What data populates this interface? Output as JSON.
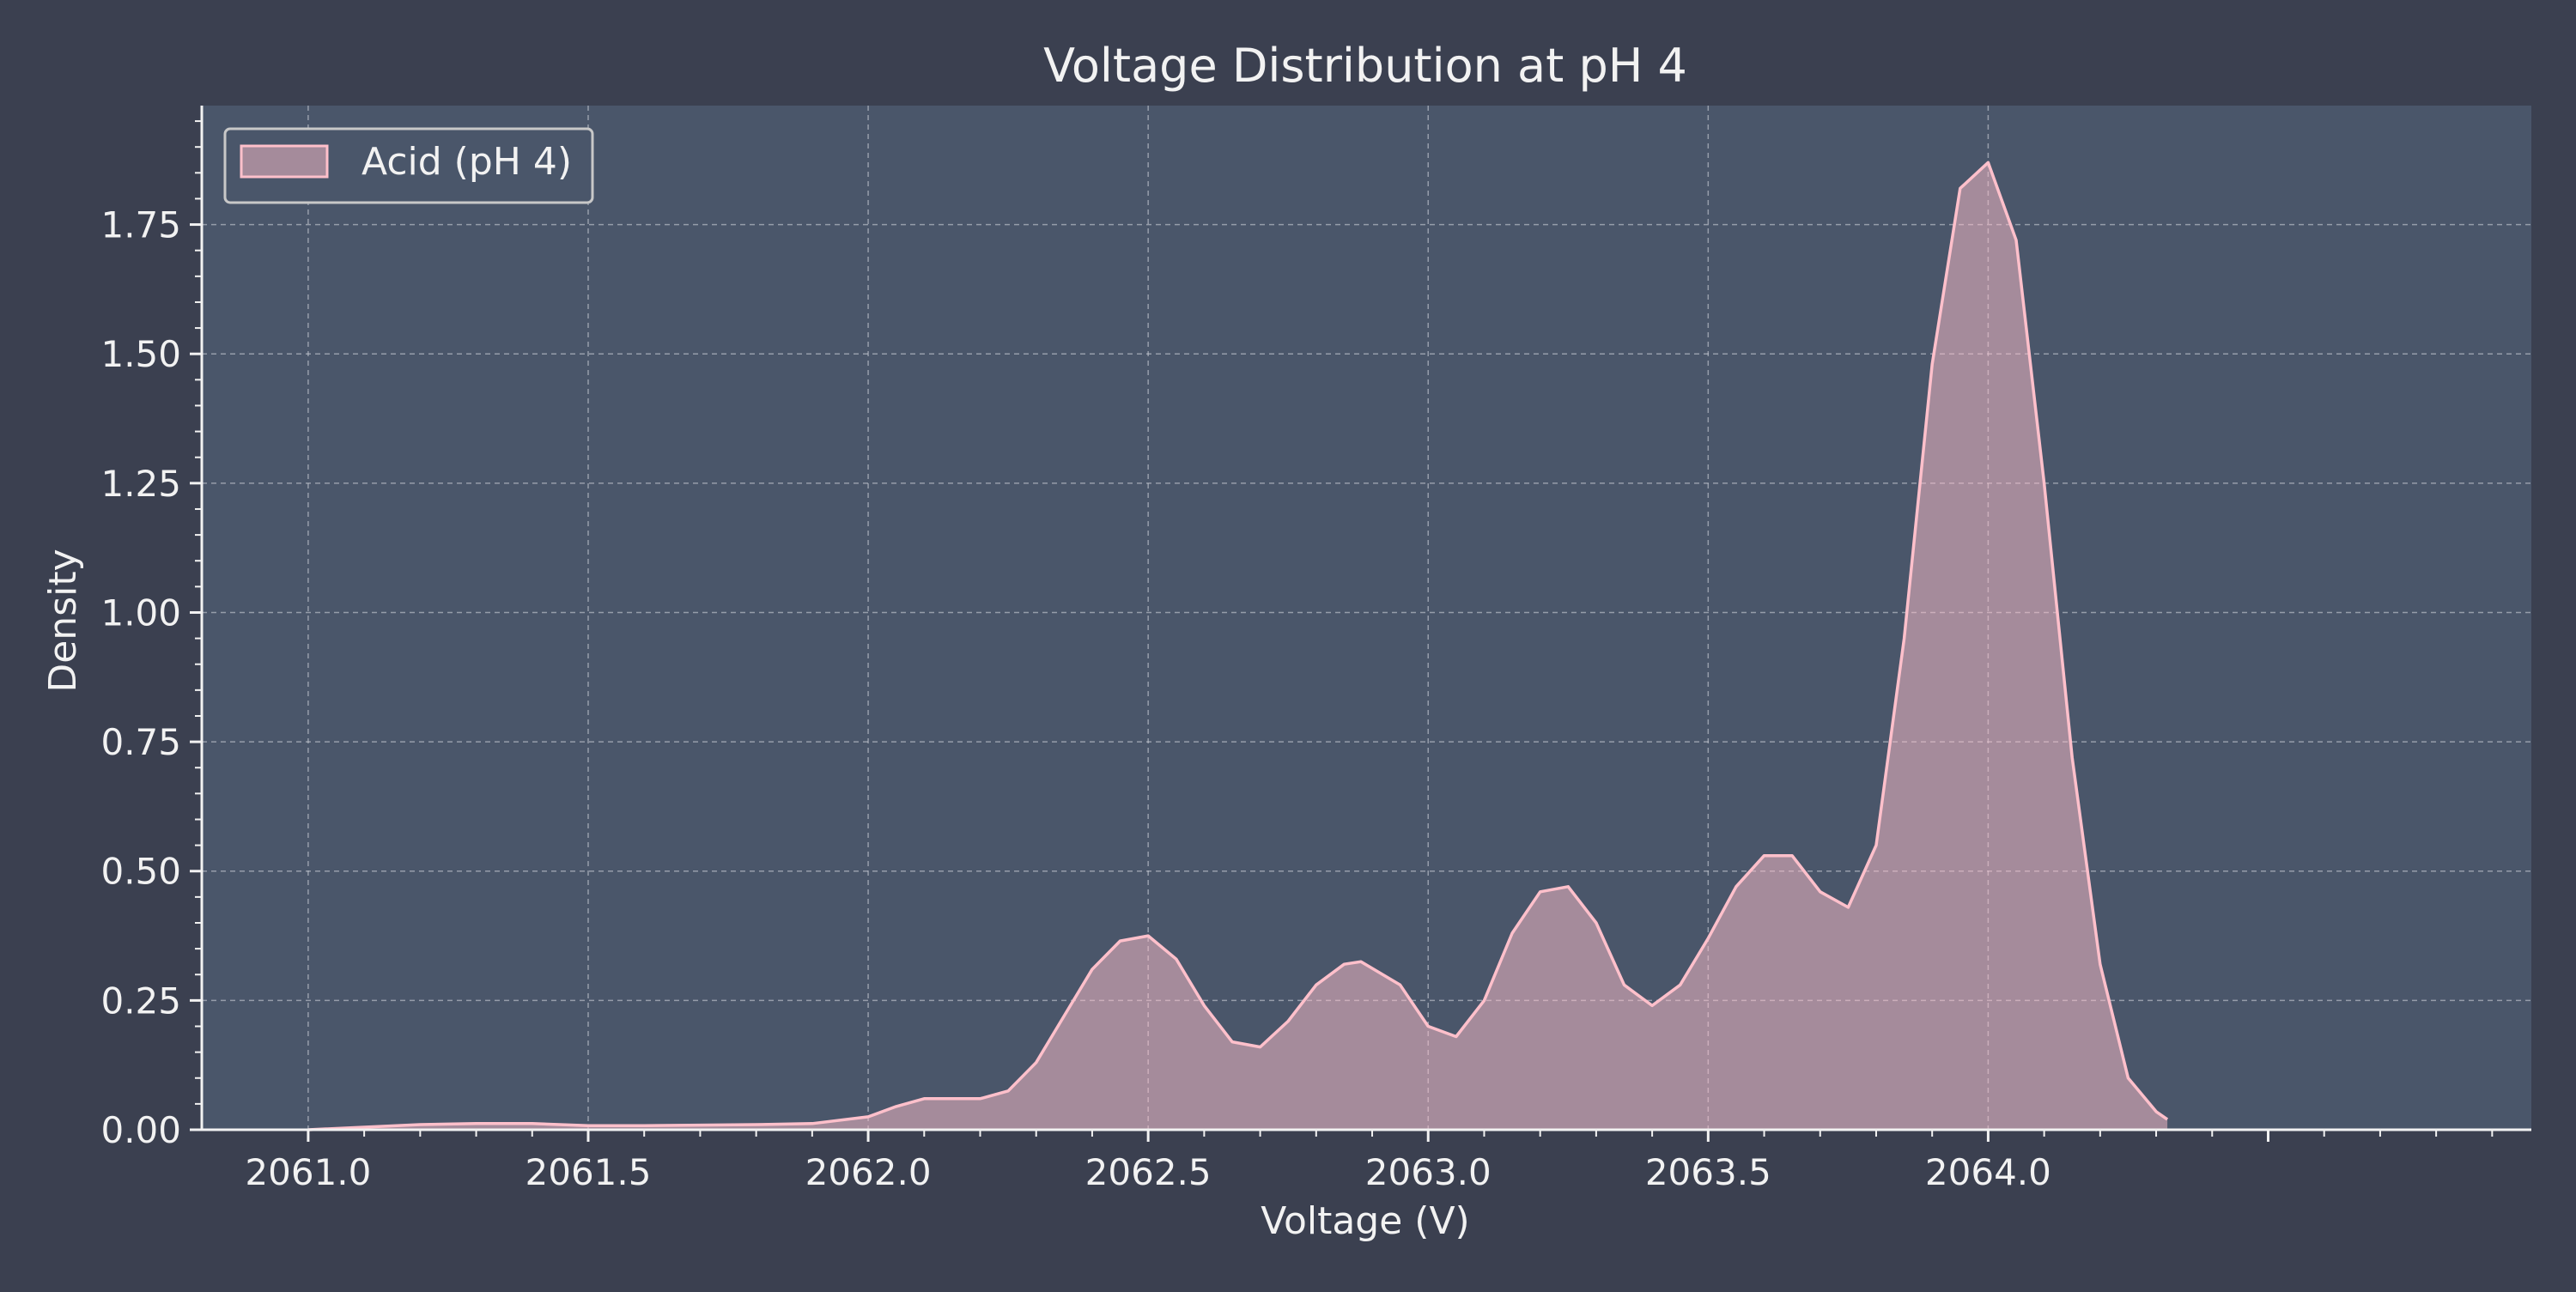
{
  "chart_data": {
    "type": "area",
    "title": "Voltage Distribution at pH 4",
    "xlabel": "Voltage (V)",
    "ylabel": "Density",
    "xlim": [
      2060.81,
      2064.97
    ],
    "ylim": [
      0,
      1.98
    ],
    "xticks": [
      2061.0,
      2061.5,
      2062.0,
      2062.5,
      2063.0,
      2063.5,
      2064.0
    ],
    "xtick_labels": [
      "2061.0",
      "2061.5",
      "2062.0",
      "2062.5",
      "2063.0",
      "2063.5",
      "2064.0"
    ],
    "yticks": [
      0,
      0.25,
      0.5,
      0.75,
      1.0,
      1.25,
      1.5,
      1.75
    ],
    "ytick_labels": [
      "0.00",
      "0.25",
      "0.50",
      "0.75",
      "1.00",
      "1.25",
      "1.50",
      "1.75"
    ],
    "grid": true,
    "legend_position": "top-left",
    "series": [
      {
        "name": "Acid (pH 4)",
        "color": "#ffc0cb",
        "x": [
          2061.0,
          2061.2,
          2061.3,
          2061.4,
          2061.5,
          2061.6,
          2061.7,
          2061.8,
          2061.9,
          2062.0,
          2062.05,
          2062.1,
          2062.15,
          2062.2,
          2062.25,
          2062.3,
          2062.35,
          2062.4,
          2062.45,
          2062.5,
          2062.55,
          2062.6,
          2062.65,
          2062.7,
          2062.75,
          2062.8,
          2062.85,
          2062.88,
          2062.95,
          2063.0,
          2063.05,
          2063.1,
          2063.15,
          2063.2,
          2063.25,
          2063.3,
          2063.35,
          2063.4,
          2063.45,
          2063.5,
          2063.55,
          2063.6,
          2063.65,
          2063.7,
          2063.75,
          2063.8,
          2063.85,
          2063.9,
          2063.95,
          2064.0,
          2064.05,
          2064.1,
          2064.15,
          2064.2,
          2064.25,
          2064.3,
          2064.32
        ],
        "y": [
          0.0,
          0.01,
          0.012,
          0.012,
          0.008,
          0.008,
          0.009,
          0.01,
          0.012,
          0.025,
          0.045,
          0.06,
          0.06,
          0.06,
          0.075,
          0.13,
          0.22,
          0.31,
          0.365,
          0.375,
          0.33,
          0.24,
          0.17,
          0.16,
          0.21,
          0.28,
          0.32,
          0.325,
          0.28,
          0.2,
          0.18,
          0.25,
          0.38,
          0.46,
          0.47,
          0.4,
          0.28,
          0.24,
          0.28,
          0.37,
          0.47,
          0.53,
          0.53,
          0.46,
          0.43,
          0.55,
          0.95,
          1.48,
          1.82,
          1.87,
          1.72,
          1.25,
          0.72,
          0.32,
          0.1,
          0.035,
          0.02
        ]
      }
    ]
  }
}
